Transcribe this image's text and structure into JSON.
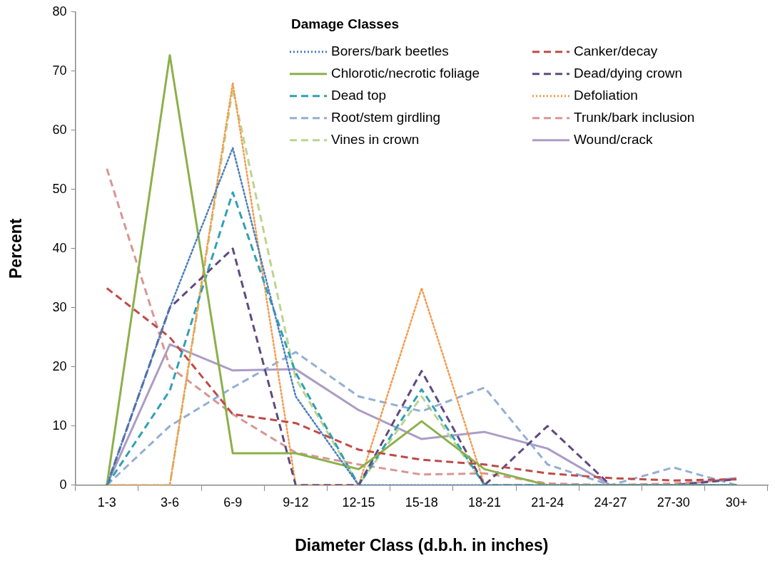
{
  "chart_data": {
    "type": "line",
    "xlabel": "Diameter Class (d.b.h. in inches)",
    "ylabel": "Percent",
    "legend_title": "Damage Classes",
    "legend": "top right",
    "grid": false,
    "marker": "none",
    "categories": [
      "1-3",
      "3-6",
      "6-9",
      "9-12",
      "12-15",
      "15-18",
      "18-21",
      "21-24",
      "24-27",
      "27-30",
      "30+"
    ],
    "ylim": [
      0,
      80
    ],
    "yticks": [
      0,
      10,
      20,
      30,
      40,
      50,
      60,
      70,
      80
    ],
    "series": [
      {
        "name": "Borers/bark beetles",
        "color": "#4a7ebb",
        "line_style": "dotted",
        "values": [
          0,
          30,
          57,
          15,
          0,
          0,
          0,
          0,
          0,
          0,
          0
        ]
      },
      {
        "name": "Canker/decay",
        "color": "#be4b48",
        "line_style": "dashed",
        "values": [
          33.3,
          25,
          12,
          10.5,
          6,
          4.3,
          3.5,
          2,
          1.2,
          0.8,
          1
        ]
      },
      {
        "name": "Chlorotic/necrotic foliage",
        "color": "#8cb04a",
        "line_style": "solid",
        "values": [
          0,
          72.7,
          5.4,
          5.4,
          2.7,
          10.8,
          2.7,
          0,
          0,
          0,
          0
        ]
      },
      {
        "name": "Dead/dying crown",
        "color": "#5f4a80",
        "line_style": "dashed",
        "values": [
          0,
          30,
          40,
          0,
          0,
          19.3,
          0,
          10,
          0,
          0,
          1
        ]
      },
      {
        "name": "Dead top",
        "color": "#31a0b5",
        "line_style": "dashed",
        "values": [
          0,
          16,
          49.5,
          19,
          0,
          16.2,
          0,
          0,
          0,
          0,
          0
        ]
      },
      {
        "name": "Defoliation",
        "color": "#f59a4e",
        "line_style": "dotted",
        "values": [
          0,
          0,
          68,
          0,
          0,
          33.3,
          0,
          0,
          0,
          0,
          0
        ]
      },
      {
        "name": "Root/stem girdling",
        "color": "#93afd6",
        "line_style": "dashed",
        "values": [
          0,
          10,
          16.5,
          22.5,
          15,
          12.5,
          16.5,
          3.5,
          0,
          3,
          0
        ]
      },
      {
        "name": "Trunk/bark inclusion",
        "color": "#d99694",
        "line_style": "dashed",
        "values": [
          53.5,
          20,
          12,
          5.5,
          3.5,
          1.8,
          2,
          0.3,
          0,
          0.3,
          1
        ]
      },
      {
        "name": "Vines in crown",
        "color": "#bcd48f",
        "line_style": "dashed",
        "values": [
          0,
          0,
          67,
          18,
          0,
          15,
          0,
          0,
          0,
          0,
          0
        ]
      },
      {
        "name": "Wound/crack",
        "color": "#ac9cc6",
        "line_style": "solid",
        "values": [
          0,
          23.8,
          19.4,
          19.6,
          12.7,
          7.8,
          9,
          6.2,
          0,
          0,
          1.2
        ]
      }
    ]
  }
}
